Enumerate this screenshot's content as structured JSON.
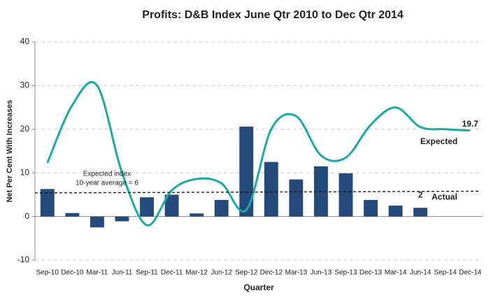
{
  "chart_data": {
    "type": "bar_line",
    "title": "Profits: D&B Index June Qtr 2010 to Dec Qtr 2014",
    "x_label": "Quarter",
    "y_label": "Net Per Cent With Increases",
    "categories": [
      "Sep-10",
      "Dec-10",
      "Mar-11",
      "Jun-11",
      "Sep-11",
      "Dec-11",
      "Mar-12",
      "Jun-12",
      "Sep-12",
      "Dec-12",
      "Mar-13",
      "Jun-13",
      "Sep-13",
      "Dec-13",
      "Mar-14",
      "Jun-14",
      "Sep-14",
      "Dec-14"
    ],
    "series": [
      {
        "name": "Actual",
        "type": "bar",
        "color": "#254a7c",
        "values": [
          6.3,
          0.8,
          -2.5,
          -1.1,
          4.4,
          5.0,
          0.7,
          3.8,
          20.6,
          12.5,
          8.5,
          11.5,
          9.9,
          3.8,
          2.5,
          2,
          null,
          null
        ]
      },
      {
        "name": "Expected",
        "type": "line",
        "color": "#1aa9a6",
        "values": [
          12.3,
          25.5,
          30,
          10,
          -2,
          6,
          8.6,
          7.6,
          1.5,
          20,
          23,
          14,
          13.5,
          21,
          25,
          20.5,
          20,
          19.7
        ]
      }
    ],
    "reference_line": {
      "label": [
        "Expected index",
        "10-year average = 6"
      ],
      "values": [
        5.4,
        5.8
      ]
    },
    "ylim": [
      -10,
      40
    ],
    "yticks": [
      -10,
      0,
      10,
      20,
      30,
      40
    ],
    "grid": true
  }
}
